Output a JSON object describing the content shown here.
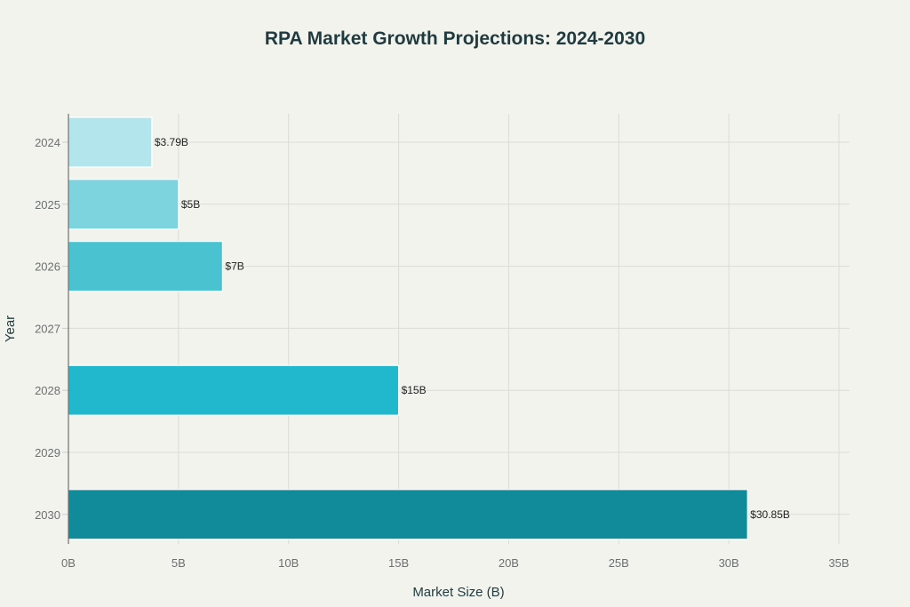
{
  "chart_data": {
    "type": "bar",
    "orientation": "horizontal",
    "title": "RPA Market Growth Projections: 2024-2030",
    "xlabel": "Market Size (B)",
    "ylabel": "Year",
    "categories": [
      "2024",
      "2025",
      "2026",
      "2027",
      "2028",
      "2029",
      "2030"
    ],
    "values": [
      3.79,
      5,
      7,
      null,
      15,
      null,
      30.85
    ],
    "data_labels": [
      "$3.79B",
      "$5B",
      "$7B",
      "",
      "$15B",
      "",
      "$30.85B"
    ],
    "colors": [
      "#b3e6ec",
      "#7dd3de",
      "#4bc2cf",
      null,
      "#21b8cd",
      null,
      "#118a99"
    ],
    "xlim": [
      0,
      35.5
    ],
    "xticks": [
      0,
      5,
      10,
      15,
      20,
      25,
      30,
      35
    ],
    "xtick_labels": [
      "0B",
      "5B",
      "10B",
      "15B",
      "20B",
      "25B",
      "30B",
      "35B"
    ],
    "grid": true,
    "background": "#f3f3ee"
  }
}
